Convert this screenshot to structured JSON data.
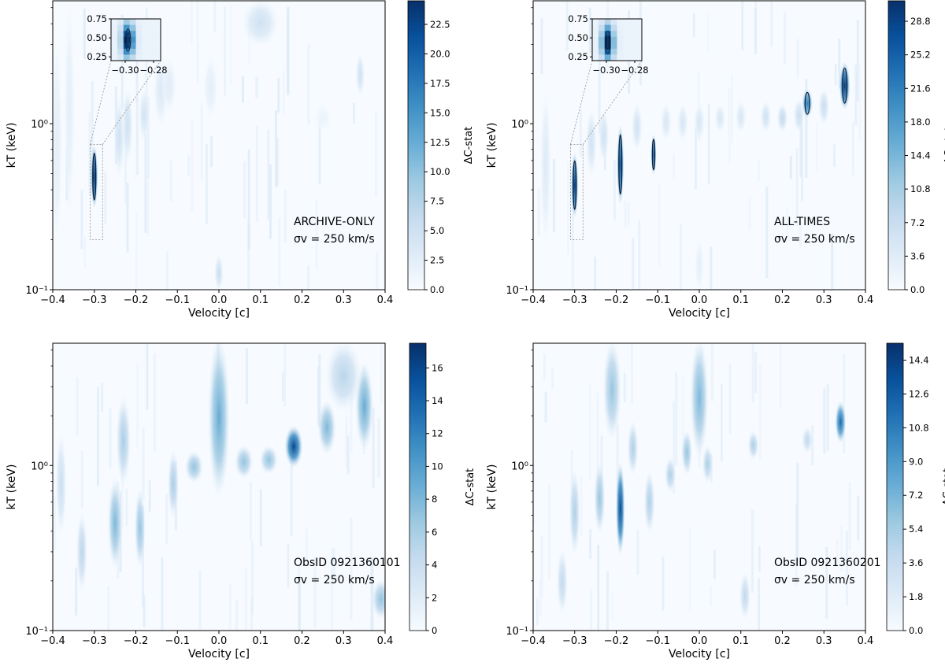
{
  "figure": {
    "colormap": [
      "#f7fbff",
      "#deebf7",
      "#c6dbef",
      "#9ecae1",
      "#6baed6",
      "#4292c6",
      "#2171b5",
      "#08519c",
      "#08306b"
    ],
    "contour_color": "#0b1f3a",
    "inset_box_color": "#9a9a9a"
  },
  "chart_data": [
    {
      "type": "heatmap",
      "panel": "top-left",
      "xlabel": "Velocity [c]",
      "ylabel": "kT (keV)",
      "xlim": [
        -0.4,
        0.4
      ],
      "ylim": [
        0.1,
        5.5
      ],
      "yscale": "log",
      "xticks": [
        -0.4,
        -0.3,
        -0.2,
        -0.1,
        0.0,
        0.1,
        0.2,
        0.3,
        0.4
      ],
      "xtick_labels": [
        "−0.4",
        "−0.3",
        "−0.2",
        "−0.1",
        "0.0",
        "0.1",
        "0.2",
        "0.3",
        "0.4"
      ],
      "ytick_labels": [
        "10⁻¹",
        "10⁰"
      ],
      "annotation": [
        "ARCHIVE-ONLY",
        "σv = 250 km/s"
      ],
      "colorbar": {
        "label": "ΔC-stat",
        "vmin": 0,
        "vmax": 24.5,
        "ticks": [
          0.0,
          2.5,
          5.0,
          7.5,
          10.0,
          12.5,
          15.0,
          17.5,
          20.0,
          22.5
        ],
        "tick_labels": [
          "0.0",
          "2.5",
          "5.0",
          "7.5",
          "10.0",
          "12.5",
          "15.0",
          "17.5",
          "20.0",
          "22.5"
        ]
      },
      "features": [
        {
          "v": -0.3,
          "kT": 0.48,
          "kTlo": 0.32,
          "kThi": 0.72,
          "value": 24.0,
          "dv": 0.004,
          "contour": true
        },
        {
          "v": -0.24,
          "kT": 0.95,
          "kTlo": 0.5,
          "kThi": 1.4,
          "value": 5.0,
          "dv": 0.006
        },
        {
          "v": -0.22,
          "kT": 1.0,
          "kTlo": 0.6,
          "kThi": 1.6,
          "value": 5.0,
          "dv": 0.006
        },
        {
          "v": -0.18,
          "kT": 1.1,
          "kTlo": 0.8,
          "kThi": 1.6,
          "value": 4.5,
          "dv": 0.006
        },
        {
          "v": -0.14,
          "kT": 1.5,
          "kTlo": 1.0,
          "kThi": 2.5,
          "value": 3.5,
          "dv": 0.008
        },
        {
          "v": -0.12,
          "kT": 1.6,
          "kTlo": 1.2,
          "kThi": 2.4,
          "value": 3.0,
          "dv": 0.008
        },
        {
          "v": -0.36,
          "kT": 1.2,
          "kTlo": 0.3,
          "kThi": 5.0,
          "value": 2.5,
          "dv": 0.006
        },
        {
          "v": -0.39,
          "kT": 0.6,
          "kTlo": 0.2,
          "kThi": 3.0,
          "value": 2.5,
          "dv": 0.006
        },
        {
          "v": -0.02,
          "kT": 1.6,
          "kTlo": 1.1,
          "kThi": 2.5,
          "value": 2.5,
          "dv": 0.008
        },
        {
          "v": 0.1,
          "kT": 4.3,
          "kTlo": 3.0,
          "kThi": 5.5,
          "value": 5.0,
          "dv": 0.02
        },
        {
          "v": 0.0,
          "kT": 0.12,
          "kTlo": 0.1,
          "kThi": 0.16,
          "value": 5.5,
          "dv": 0.005
        },
        {
          "v": 0.34,
          "kT": 2.0,
          "kTlo": 1.5,
          "kThi": 2.6,
          "value": 5.0,
          "dv": 0.005
        },
        {
          "v": 0.25,
          "kT": 1.1,
          "kTlo": 0.9,
          "kThi": 1.3,
          "value": 1.5,
          "dv": 0.01
        }
      ],
      "inset": {
        "zoom_box": {
          "x": [
            -0.31,
            -0.28
          ],
          "y": [
            0.2,
            0.75
          ]
        },
        "xlim": [
          -0.31,
          -0.275
        ],
        "ylim": [
          0.2,
          0.75
        ],
        "xticks": [
          -0.3,
          -0.28
        ],
        "xtick_labels": [
          "−0.30",
          "−0.28"
        ],
        "yticks": [
          0.25,
          0.5,
          0.75
        ],
        "ytick_labels": [
          "0.25",
          "0.50",
          "0.75"
        ],
        "peak": {
          "v": -0.298,
          "kT": 0.47
        }
      }
    },
    {
      "type": "heatmap",
      "panel": "top-right",
      "xlabel": "Velocity [c]",
      "ylabel": "kT (keV)",
      "xlim": [
        -0.4,
        0.4
      ],
      "ylim": [
        0.1,
        5.5
      ],
      "yscale": "log",
      "xticks": [
        -0.4,
        -0.3,
        -0.2,
        -0.1,
        0.0,
        0.1,
        0.2,
        0.3,
        0.4
      ],
      "xtick_labels": [
        "−0.4",
        "−0.3",
        "−0.2",
        "−0.1",
        "0.0",
        "0.1",
        "0.2",
        "0.3",
        "0.4"
      ],
      "ytick_labels": [
        "10⁻¹",
        "10⁰"
      ],
      "annotation": [
        "ALL-TIMES",
        "σv = 250 km/s"
      ],
      "colorbar": {
        "label": "ΔC-stat",
        "vmin": 0,
        "vmax": 31,
        "ticks": [
          0.0,
          3.6,
          7.2,
          10.8,
          14.4,
          18.0,
          21.6,
          25.2,
          28.8
        ],
        "tick_labels": [
          "0.0",
          "3.6",
          "7.2",
          "10.8",
          "14.4",
          "18.0",
          "21.6",
          "25.2",
          "28.8"
        ]
      },
      "features": [
        {
          "v": -0.3,
          "kT": 0.42,
          "kTlo": 0.28,
          "kThi": 0.65,
          "value": 30.0,
          "dv": 0.004,
          "contour": true
        },
        {
          "v": -0.19,
          "kT": 0.6,
          "kTlo": 0.34,
          "kThi": 0.95,
          "value": 28.0,
          "dv": 0.004,
          "contour": true
        },
        {
          "v": -0.11,
          "kT": 0.68,
          "kTlo": 0.5,
          "kThi": 0.85,
          "value": 26.0,
          "dv": 0.003,
          "contour": true
        },
        {
          "v": 0.35,
          "kT": 1.7,
          "kTlo": 1.25,
          "kThi": 2.3,
          "value": 30.0,
          "dv": 0.006,
          "contour": true
        },
        {
          "v": 0.26,
          "kT": 1.3,
          "kTlo": 1.1,
          "kThi": 1.6,
          "value": 22.0,
          "dv": 0.006,
          "contour": true
        },
        {
          "v": -0.26,
          "kT": 0.8,
          "kTlo": 0.5,
          "kThi": 1.2,
          "value": 6.0,
          "dv": 0.006
        },
        {
          "v": -0.23,
          "kT": 0.85,
          "kTlo": 0.6,
          "kThi": 1.2,
          "value": 6.0,
          "dv": 0.006
        },
        {
          "v": -0.15,
          "kT": 0.95,
          "kTlo": 0.7,
          "kThi": 1.3,
          "value": 6.0,
          "dv": 0.006
        },
        {
          "v": -0.08,
          "kT": 1.0,
          "kTlo": 0.8,
          "kThi": 1.3,
          "value": 5.0,
          "dv": 0.006
        },
        {
          "v": -0.04,
          "kT": 1.0,
          "kTlo": 0.8,
          "kThi": 1.3,
          "value": 5.0,
          "dv": 0.006
        },
        {
          "v": 0.0,
          "kT": 1.0,
          "kTlo": 0.8,
          "kThi": 1.3,
          "value": 5.0,
          "dv": 0.006
        },
        {
          "v": 0.05,
          "kT": 1.05,
          "kTlo": 0.9,
          "kThi": 1.3,
          "value": 5.0,
          "dv": 0.006
        },
        {
          "v": 0.1,
          "kT": 1.1,
          "kTlo": 0.9,
          "kThi": 1.35,
          "value": 5.0,
          "dv": 0.006
        },
        {
          "v": 0.16,
          "kT": 1.1,
          "kTlo": 0.9,
          "kThi": 1.35,
          "value": 6.0,
          "dv": 0.006
        },
        {
          "v": 0.2,
          "kT": 1.05,
          "kTlo": 0.9,
          "kThi": 1.3,
          "value": 8.0,
          "dv": 0.006
        },
        {
          "v": 0.24,
          "kT": 1.1,
          "kTlo": 0.9,
          "kThi": 1.4,
          "value": 7.0,
          "dv": 0.006
        },
        {
          "v": 0.3,
          "kT": 1.3,
          "kTlo": 1.0,
          "kThi": 1.6,
          "value": 7.0,
          "dv": 0.006
        },
        {
          "v": -0.37,
          "kT": 0.7,
          "kTlo": 0.2,
          "kThi": 1.5,
          "value": 4.0,
          "dv": 0.006
        },
        {
          "v": 0.0,
          "kT": 0.12,
          "kTlo": 0.1,
          "kThi": 0.2,
          "value": 3.0,
          "dv": 0.005
        }
      ],
      "inset": {
        "zoom_box": {
          "x": [
            -0.31,
            -0.28
          ],
          "y": [
            0.2,
            0.75
          ]
        },
        "xlim": [
          -0.31,
          -0.275
        ],
        "ylim": [
          0.2,
          0.75
        ],
        "xticks": [
          -0.3,
          -0.28
        ],
        "xtick_labels": [
          "−0.30",
          "−0.28"
        ],
        "yticks": [
          0.25,
          0.5,
          0.75
        ],
        "ytick_labels": [
          "0.25",
          "0.50",
          "0.75"
        ],
        "peak": {
          "v": -0.299,
          "kT": 0.44
        }
      }
    },
    {
      "type": "heatmap",
      "panel": "bottom-left",
      "xlabel": "Velocity [c]",
      "ylabel": "kT (keV)",
      "xlim": [
        -0.4,
        0.4
      ],
      "ylim": [
        0.1,
        5.5
      ],
      "yscale": "log",
      "xticks": [
        -0.4,
        -0.3,
        -0.2,
        -0.1,
        0.0,
        0.1,
        0.2,
        0.3,
        0.4
      ],
      "xtick_labels": [
        "−0.4",
        "−0.3",
        "−0.2",
        "−0.1",
        "0.0",
        "0.1",
        "0.2",
        "0.3",
        "0.4"
      ],
      "ytick_labels": [
        "10⁻¹",
        "10⁰"
      ],
      "annotation": [
        "ObsID 0921360101",
        "σv = 250 km/s"
      ],
      "colorbar": {
        "label": "ΔC-stat",
        "vmin": 0,
        "vmax": 17.5,
        "ticks": [
          0,
          2,
          4,
          6,
          8,
          10,
          12,
          14,
          16
        ],
        "tick_labels": [
          "0",
          "2",
          "4",
          "6",
          "8",
          "10",
          "12",
          "14",
          "16"
        ]
      },
      "features": [
        {
          "v": 0.18,
          "kT": 1.3,
          "kTlo": 1.0,
          "kThi": 1.7,
          "value": 16.0,
          "dv": 0.01
        },
        {
          "v": 0.0,
          "kT": 1.2,
          "kTlo": 0.7,
          "kThi": 5.5,
          "value": 9.0,
          "dv": 0.012
        },
        {
          "v": -0.25,
          "kT": 0.45,
          "kTlo": 0.25,
          "kThi": 0.8,
          "value": 8.0,
          "dv": 0.008
        },
        {
          "v": -0.19,
          "kT": 0.4,
          "kTlo": 0.25,
          "kThi": 0.7,
          "value": 7.0,
          "dv": 0.006
        },
        {
          "v": -0.23,
          "kT": 1.3,
          "kTlo": 0.8,
          "kThi": 2.5,
          "value": 6.0,
          "dv": 0.008
        },
        {
          "v": -0.11,
          "kT": 0.9,
          "kTlo": 0.5,
          "kThi": 1.2,
          "value": 6.0,
          "dv": 0.006
        },
        {
          "v": -0.06,
          "kT": 1.0,
          "kTlo": 0.8,
          "kThi": 1.2,
          "value": 7.0,
          "dv": 0.01
        },
        {
          "v": 0.06,
          "kT": 1.05,
          "kTlo": 0.85,
          "kThi": 1.3,
          "value": 7.0,
          "dv": 0.01
        },
        {
          "v": 0.12,
          "kT": 1.1,
          "kTlo": 0.9,
          "kThi": 1.3,
          "value": 7.0,
          "dv": 0.01
        },
        {
          "v": 0.26,
          "kT": 1.7,
          "kTlo": 1.2,
          "kThi": 2.4,
          "value": 8.0,
          "dv": 0.01
        },
        {
          "v": 0.35,
          "kT": 1.9,
          "kTlo": 1.3,
          "kThi": 4.0,
          "value": 9.0,
          "dv": 0.01
        },
        {
          "v": 0.3,
          "kT": 3.5,
          "kTlo": 2.2,
          "kThi": 5.5,
          "value": 5.0,
          "dv": 0.02
        },
        {
          "v": -0.33,
          "kT": 0.3,
          "kTlo": 0.18,
          "kThi": 0.5,
          "value": 5.0,
          "dv": 0.006
        },
        {
          "v": -0.38,
          "kT": 0.8,
          "kTlo": 0.4,
          "kThi": 1.5,
          "value": 4.0,
          "dv": 0.006
        },
        {
          "v": 0.39,
          "kT": 0.15,
          "kTlo": 0.12,
          "kThi": 0.2,
          "value": 7.0,
          "dv": 0.01
        }
      ]
    },
    {
      "type": "heatmap",
      "panel": "bottom-right",
      "xlabel": "Velocity [c]",
      "ylabel": "kT (keV)",
      "xlim": [
        -0.4,
        0.4
      ],
      "ylim": [
        0.1,
        5.5
      ],
      "yscale": "log",
      "xticks": [
        -0.4,
        -0.3,
        -0.2,
        -0.1,
        0.0,
        0.1,
        0.2,
        0.3,
        0.4
      ],
      "xtick_labels": [
        "−0.4",
        "−0.3",
        "−0.2",
        "−0.1",
        "0.0",
        "0.1",
        "0.2",
        "0.3",
        "0.4"
      ],
      "ytick_labels": [
        "10⁻¹",
        "10⁰"
      ],
      "annotation": [
        "ObsID 0921360201",
        "σv = 250 km/s"
      ],
      "colorbar": {
        "label": "ΔC-stat",
        "vmin": 0,
        "vmax": 15.3,
        "ticks": [
          0.0,
          1.8,
          3.6,
          5.4,
          7.2,
          9.0,
          10.8,
          12.6,
          14.4
        ],
        "tick_labels": [
          "0.0",
          "1.8",
          "3.6",
          "5.4",
          "7.2",
          "9.0",
          "10.8",
          "12.6",
          "14.4"
        ]
      },
      "features": [
        {
          "v": -0.19,
          "kT": 0.6,
          "kTlo": 0.3,
          "kThi": 1.0,
          "value": 14.0,
          "dv": 0.005
        },
        {
          "v": 0.34,
          "kT": 1.8,
          "kTlo": 1.4,
          "kThi": 2.4,
          "value": 12.0,
          "dv": 0.006
        },
        {
          "v": -0.21,
          "kT": 3.5,
          "kTlo": 1.5,
          "kThi": 5.5,
          "value": 6.0,
          "dv": 0.01
        },
        {
          "v": 0.0,
          "kT": 3.0,
          "kTlo": 1.2,
          "kThi": 5.5,
          "value": 7.0,
          "dv": 0.01
        },
        {
          "v": -0.03,
          "kT": 1.2,
          "kTlo": 0.9,
          "kThi": 1.6,
          "value": 6.0,
          "dv": 0.006
        },
        {
          "v": -0.24,
          "kT": 0.7,
          "kTlo": 0.4,
          "kThi": 1.0,
          "value": 6.0,
          "dv": 0.006
        },
        {
          "v": -0.16,
          "kT": 1.3,
          "kTlo": 0.9,
          "kThi": 1.8,
          "value": 5.0,
          "dv": 0.006
        },
        {
          "v": -0.12,
          "kT": 0.6,
          "kTlo": 0.4,
          "kThi": 0.9,
          "value": 5.0,
          "dv": 0.006
        },
        {
          "v": -0.07,
          "kT": 0.9,
          "kTlo": 0.7,
          "kThi": 1.1,
          "value": 5.0,
          "dv": 0.006
        },
        {
          "v": 0.02,
          "kT": 1.0,
          "kTlo": 0.8,
          "kThi": 1.3,
          "value": 5.0,
          "dv": 0.006
        },
        {
          "v": 0.13,
          "kT": 1.3,
          "kTlo": 1.1,
          "kThi": 1.6,
          "value": 5.0,
          "dv": 0.006
        },
        {
          "v": 0.26,
          "kT": 1.4,
          "kTlo": 1.2,
          "kThi": 1.7,
          "value": 4.0,
          "dv": 0.006
        },
        {
          "v": -0.3,
          "kT": 0.6,
          "kTlo": 0.3,
          "kThi": 0.9,
          "value": 5.0,
          "dv": 0.006
        },
        {
          "v": -0.33,
          "kT": 0.2,
          "kTlo": 0.13,
          "kThi": 0.3,
          "value": 4.0,
          "dv": 0.006
        },
        {
          "v": 0.11,
          "kT": 0.17,
          "kTlo": 0.12,
          "kThi": 0.22,
          "value": 4.0,
          "dv": 0.006
        }
      ]
    }
  ]
}
